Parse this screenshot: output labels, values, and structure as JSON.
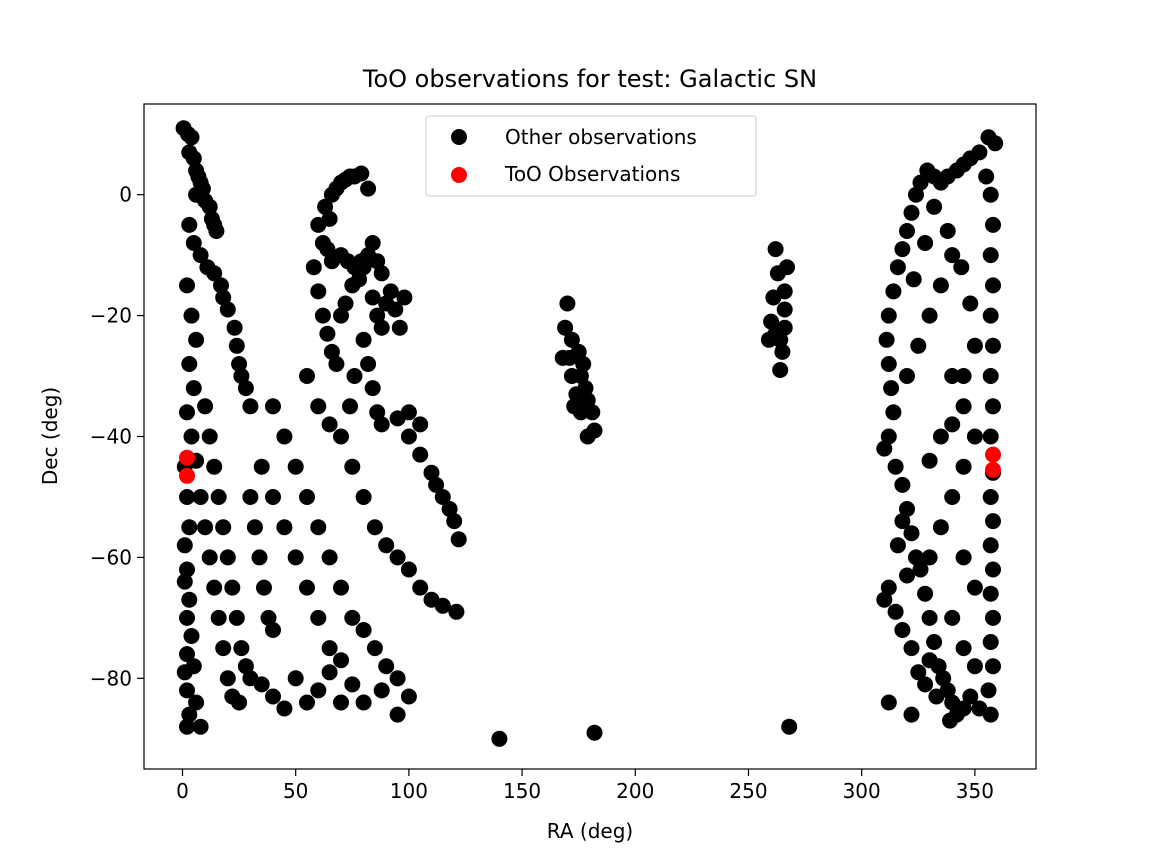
{
  "chart_data": {
    "type": "scatter",
    "title": "ToO observations for test: Galactic SN",
    "xlabel": "RA (deg)",
    "ylabel": "Dec (deg)",
    "xlim": [
      -17,
      377
    ],
    "ylim": [
      -95,
      15
    ],
    "xticks": [
      0,
      50,
      100,
      150,
      200,
      250,
      300,
      350
    ],
    "yticks": [
      0,
      -20,
      -40,
      -60,
      -80
    ],
    "grid": false,
    "legend_position": "upper center",
    "series": [
      {
        "name": "Other observations",
        "color": "#000000",
        "points": [
          [
            0.5,
            11
          ],
          [
            2.5,
            10
          ],
          [
            4,
            9.5
          ],
          [
            3,
            7
          ],
          [
            5,
            6
          ],
          [
            6,
            4
          ],
          [
            7,
            3
          ],
          [
            8,
            2
          ],
          [
            9,
            1
          ],
          [
            6,
            0
          ],
          [
            10,
            -1
          ],
          [
            12,
            -2
          ],
          [
            13,
            -4
          ],
          [
            14,
            -5
          ],
          [
            15,
            -6
          ],
          [
            3,
            -5
          ],
          [
            5,
            -8
          ],
          [
            8,
            -10
          ],
          [
            11,
            -12
          ],
          [
            14,
            -13
          ],
          [
            17,
            -15
          ],
          [
            18,
            -17
          ],
          [
            20,
            -19
          ],
          [
            23,
            -22
          ],
          [
            24,
            -25
          ],
          [
            25,
            -28
          ],
          [
            26,
            -30
          ],
          [
            28,
            -32
          ],
          [
            30,
            -35
          ],
          [
            2,
            -15
          ],
          [
            4,
            -20
          ],
          [
            6,
            -24
          ],
          [
            3,
            -28
          ],
          [
            5,
            -32
          ],
          [
            2,
            -36
          ],
          [
            4,
            -40
          ],
          [
            6,
            -44
          ],
          [
            1,
            -45
          ],
          [
            2,
            -50
          ],
          [
            3,
            -55
          ],
          [
            1,
            -58
          ],
          [
            2,
            -62
          ],
          [
            1,
            -64
          ],
          [
            3,
            -67
          ],
          [
            2,
            -70
          ],
          [
            4,
            -73
          ],
          [
            2,
            -76
          ],
          [
            5,
            -78
          ],
          [
            1,
            -79
          ],
          [
            2,
            -82
          ],
          [
            6,
            -84
          ],
          [
            3,
            -86
          ],
          [
            2,
            -88
          ],
          [
            8,
            -88
          ],
          [
            8,
            -50
          ],
          [
            10,
            -55
          ],
          [
            12,
            -60
          ],
          [
            14,
            -65
          ],
          [
            16,
            -70
          ],
          [
            18,
            -75
          ],
          [
            20,
            -80
          ],
          [
            22,
            -83
          ],
          [
            10,
            -35
          ],
          [
            12,
            -40
          ],
          [
            14,
            -45
          ],
          [
            16,
            -50
          ],
          [
            18,
            -55
          ],
          [
            20,
            -60
          ],
          [
            22,
            -65
          ],
          [
            24,
            -70
          ],
          [
            26,
            -75
          ],
          [
            28,
            -78
          ],
          [
            30,
            -80
          ],
          [
            25,
            -84
          ],
          [
            35,
            -81
          ],
          [
            40,
            -83
          ],
          [
            45,
            -85
          ],
          [
            50,
            -80
          ],
          [
            55,
            -84
          ],
          [
            60,
            -82
          ],
          [
            65,
            -79
          ],
          [
            70,
            -84
          ],
          [
            75,
            -81
          ],
          [
            80,
            -84
          ],
          [
            88,
            -82
          ],
          [
            95,
            -86
          ],
          [
            100,
            -83
          ],
          [
            40,
            -35
          ],
          [
            45,
            -40
          ],
          [
            50,
            -45
          ],
          [
            55,
            -50
          ],
          [
            60,
            -55
          ],
          [
            65,
            -60
          ],
          [
            70,
            -65
          ],
          [
            75,
            -70
          ],
          [
            80,
            -72
          ],
          [
            85,
            -75
          ],
          [
            90,
            -78
          ],
          [
            95,
            -80
          ],
          [
            55,
            -30
          ],
          [
            60,
            -35
          ],
          [
            65,
            -38
          ],
          [
            70,
            -40
          ],
          [
            75,
            -45
          ],
          [
            80,
            -50
          ],
          [
            85,
            -55
          ],
          [
            90,
            -58
          ],
          [
            95,
            -60
          ],
          [
            100,
            -62
          ],
          [
            105,
            -65
          ],
          [
            110,
            -67
          ],
          [
            115,
            -68
          ],
          [
            121,
            -69
          ],
          [
            35,
            -45
          ],
          [
            40,
            -50
          ],
          [
            45,
            -55
          ],
          [
            50,
            -60
          ],
          [
            55,
            -65
          ],
          [
            60,
            -70
          ],
          [
            65,
            -75
          ],
          [
            70,
            -77
          ],
          [
            30,
            -50
          ],
          [
            32,
            -55
          ],
          [
            34,
            -60
          ],
          [
            36,
            -65
          ],
          [
            38,
            -70
          ],
          [
            40,
            -72
          ],
          [
            100,
            -40
          ],
          [
            105,
            -43
          ],
          [
            110,
            -46
          ],
          [
            115,
            -50
          ],
          [
            120,
            -54
          ],
          [
            122,
            -57
          ],
          [
            112,
            -48
          ],
          [
            118,
            -52
          ],
          [
            95,
            -37
          ],
          [
            100,
            -36
          ],
          [
            105,
            -38
          ],
          [
            60,
            -5
          ],
          [
            62,
            -8
          ],
          [
            63,
            -2
          ],
          [
            65,
            -4
          ],
          [
            66,
            0
          ],
          [
            68,
            1
          ],
          [
            70,
            2
          ],
          [
            72,
            2.5
          ],
          [
            74,
            3
          ],
          [
            76,
            3
          ],
          [
            79,
            3.5
          ],
          [
            82,
            1
          ],
          [
            58,
            -12
          ],
          [
            60,
            -16
          ],
          [
            62,
            -20
          ],
          [
            64,
            -23
          ],
          [
            66,
            -26
          ],
          [
            68,
            -28
          ],
          [
            70,
            -20
          ],
          [
            72,
            -18
          ],
          [
            75,
            -15
          ],
          [
            78,
            -14
          ],
          [
            80,
            -12
          ],
          [
            82,
            -10
          ],
          [
            84,
            -8
          ],
          [
            86,
            -11
          ],
          [
            88,
            -13
          ],
          [
            64,
            -9
          ],
          [
            66,
            -11
          ],
          [
            70,
            -10
          ],
          [
            73,
            -11
          ],
          [
            76,
            -12
          ],
          [
            79,
            -11
          ],
          [
            84,
            -17
          ],
          [
            86,
            -20
          ],
          [
            88,
            -22
          ],
          [
            90,
            -18
          ],
          [
            92,
            -16
          ],
          [
            94,
            -19
          ],
          [
            96,
            -22
          ],
          [
            98,
            -17
          ],
          [
            80,
            -24
          ],
          [
            82,
            -28
          ],
          [
            84,
            -32
          ],
          [
            86,
            -36
          ],
          [
            88,
            -38
          ],
          [
            76,
            -30
          ],
          [
            74,
            -35
          ],
          [
            170,
            -18
          ],
          [
            169,
            -22
          ],
          [
            172,
            -24
          ],
          [
            175,
            -26
          ],
          [
            177,
            -28
          ],
          [
            176,
            -30
          ],
          [
            178,
            -32
          ],
          [
            179,
            -34
          ],
          [
            181,
            -36
          ],
          [
            182,
            -39
          ],
          [
            179,
            -40
          ],
          [
            172,
            -30
          ],
          [
            174,
            -33
          ],
          [
            176,
            -36
          ],
          [
            168,
            -27
          ],
          [
            171,
            -27
          ],
          [
            173,
            -35
          ],
          [
            262,
            -9
          ],
          [
            263,
            -13
          ],
          [
            261,
            -17
          ],
          [
            260,
            -21
          ],
          [
            262,
            -23
          ],
          [
            264,
            -24
          ],
          [
            266,
            -22
          ],
          [
            265,
            -26
          ],
          [
            264,
            -29
          ],
          [
            267,
            -12
          ],
          [
            266,
            -16
          ],
          [
            266,
            -19
          ],
          [
            259,
            -24
          ],
          [
            140,
            -90
          ],
          [
            182,
            -89
          ],
          [
            268,
            -88
          ],
          [
            356,
            9.5
          ],
          [
            359,
            8.5
          ],
          [
            352,
            7
          ],
          [
            348,
            6
          ],
          [
            345,
            5
          ],
          [
            342,
            4
          ],
          [
            338,
            3
          ],
          [
            335,
            2
          ],
          [
            332,
            3
          ],
          [
            329,
            4
          ],
          [
            326,
            2
          ],
          [
            324,
            0
          ],
          [
            322,
            -3
          ],
          [
            320,
            -6
          ],
          [
            318,
            -9
          ],
          [
            316,
            -12
          ],
          [
            314,
            -16
          ],
          [
            312,
            -20
          ],
          [
            311,
            -24
          ],
          [
            312,
            -28
          ],
          [
            313,
            -32
          ],
          [
            314,
            -36
          ],
          [
            312,
            -40
          ],
          [
            310,
            -42
          ],
          [
            315,
            -45
          ],
          [
            318,
            -48
          ],
          [
            320,
            -52
          ],
          [
            322,
            -56
          ],
          [
            324,
            -60
          ],
          [
            326,
            -62
          ],
          [
            328,
            -66
          ],
          [
            330,
            -70
          ],
          [
            332,
            -74
          ],
          [
            334,
            -78
          ],
          [
            336,
            -80
          ],
          [
            338,
            -82
          ],
          [
            340,
            -84
          ],
          [
            342,
            -86
          ],
          [
            345,
            -85
          ],
          [
            348,
            -83
          ],
          [
            352,
            -85
          ],
          [
            357,
            -86
          ],
          [
            356,
            -82
          ],
          [
            358,
            -78
          ],
          [
            357,
            -74
          ],
          [
            358,
            -70
          ],
          [
            357,
            -66
          ],
          [
            358,
            -62
          ],
          [
            357,
            -58
          ],
          [
            358,
            -54
          ],
          [
            357,
            -50
          ],
          [
            358,
            -46
          ],
          [
            357,
            -40
          ],
          [
            358,
            -35
          ],
          [
            357,
            -30
          ],
          [
            358,
            -25
          ],
          [
            357,
            -20
          ],
          [
            358,
            -15
          ],
          [
            357,
            -10
          ],
          [
            358,
            -5
          ],
          [
            357,
            0
          ],
          [
            355,
            3
          ],
          [
            340,
            -10
          ],
          [
            335,
            -15
          ],
          [
            330,
            -20
          ],
          [
            325,
            -25
          ],
          [
            320,
            -30
          ],
          [
            340,
            -30
          ],
          [
            345,
            -35
          ],
          [
            350,
            -40
          ],
          [
            345,
            -45
          ],
          [
            340,
            -50
          ],
          [
            335,
            -55
          ],
          [
            330,
            -60
          ],
          [
            345,
            -60
          ],
          [
            350,
            -65
          ],
          [
            340,
            -70
          ],
          [
            345,
            -75
          ],
          [
            350,
            -78
          ],
          [
            312,
            -65
          ],
          [
            310,
            -67
          ],
          [
            315,
            -69
          ],
          [
            318,
            -72
          ],
          [
            322,
            -75
          ],
          [
            325,
            -79
          ],
          [
            328,
            -81
          ],
          [
            330,
            -77
          ],
          [
            312,
            -84
          ],
          [
            322,
            -86
          ],
          [
            333,
            -83
          ],
          [
            339,
            -87
          ],
          [
            330,
            -44
          ],
          [
            335,
            -40
          ],
          [
            340,
            -38
          ],
          [
            345,
            -30
          ],
          [
            350,
            -25
          ],
          [
            348,
            -18
          ],
          [
            344,
            -12
          ],
          [
            338,
            -6
          ],
          [
            332,
            -2
          ],
          [
            328,
            -8
          ],
          [
            323,
            -14
          ],
          [
            318,
            -54
          ],
          [
            316,
            -58
          ],
          [
            320,
            -63
          ]
        ]
      },
      {
        "name": "ToO Observations",
        "color": "#ff0000",
        "points": [
          [
            2,
            -43.5
          ],
          [
            2,
            -46.5
          ],
          [
            358,
            -43
          ],
          [
            358,
            -45.5
          ]
        ]
      }
    ]
  }
}
